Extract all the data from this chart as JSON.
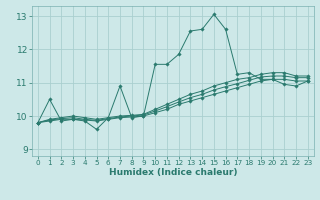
{
  "bg_color": "#cde8e8",
  "grid_color": "#aacfcf",
  "line_color": "#2a7a6e",
  "xlabel": "Humidex (Indice chaleur)",
  "xlim": [
    -0.5,
    23.5
  ],
  "ylim": [
    8.8,
    13.3
  ],
  "yticks": [
    9,
    10,
    11,
    12,
    13
  ],
  "xticks": [
    0,
    1,
    2,
    3,
    4,
    5,
    6,
    7,
    8,
    9,
    10,
    11,
    12,
    13,
    14,
    15,
    16,
    17,
    18,
    19,
    20,
    21,
    22,
    23
  ],
  "lines": [
    {
      "x": [
        0,
        1,
        2,
        3,
        4,
        5,
        6,
        7,
        8,
        9,
        10,
        11,
        12,
        13,
        14,
        15,
        16,
        17,
        18,
        19,
        20,
        21,
        22,
        23
      ],
      "y": [
        9.8,
        10.5,
        9.85,
        9.9,
        9.85,
        9.6,
        9.95,
        10.9,
        9.95,
        10.0,
        11.55,
        11.55,
        11.85,
        12.55,
        12.6,
        13.05,
        12.6,
        11.25,
        11.3,
        11.1,
        11.1,
        10.95,
        10.9,
        11.05
      ]
    },
    {
      "x": [
        0,
        1,
        2,
        3,
        4,
        5,
        6,
        7,
        8,
        9,
        10,
        11,
        12,
        13,
        14,
        15,
        16,
        17,
        18,
        19,
        20,
        21,
        22,
        23
      ],
      "y": [
        9.8,
        9.85,
        9.9,
        9.9,
        9.88,
        9.85,
        9.9,
        9.95,
        9.97,
        10.0,
        10.1,
        10.2,
        10.35,
        10.45,
        10.55,
        10.65,
        10.75,
        10.85,
        10.95,
        11.05,
        11.1,
        11.1,
        11.05,
        11.05
      ]
    },
    {
      "x": [
        0,
        1,
        2,
        3,
        4,
        5,
        6,
        7,
        8,
        9,
        10,
        11,
        12,
        13,
        14,
        15,
        16,
        17,
        18,
        19,
        20,
        21,
        22,
        23
      ],
      "y": [
        9.8,
        9.88,
        9.92,
        9.95,
        9.9,
        9.87,
        9.92,
        9.97,
        10.0,
        10.03,
        10.15,
        10.28,
        10.42,
        10.55,
        10.65,
        10.78,
        10.88,
        10.97,
        11.07,
        11.17,
        11.2,
        11.2,
        11.15,
        11.15
      ]
    },
    {
      "x": [
        0,
        1,
        2,
        3,
        4,
        5,
        6,
        7,
        8,
        9,
        10,
        11,
        12,
        13,
        14,
        15,
        16,
        17,
        18,
        19,
        20,
        21,
        22,
        23
      ],
      "y": [
        9.8,
        9.9,
        9.95,
        10.0,
        9.95,
        9.9,
        9.95,
        10.0,
        10.02,
        10.05,
        10.2,
        10.35,
        10.5,
        10.65,
        10.75,
        10.9,
        11.0,
        11.1,
        11.15,
        11.25,
        11.3,
        11.3,
        11.2,
        11.2
      ]
    }
  ]
}
